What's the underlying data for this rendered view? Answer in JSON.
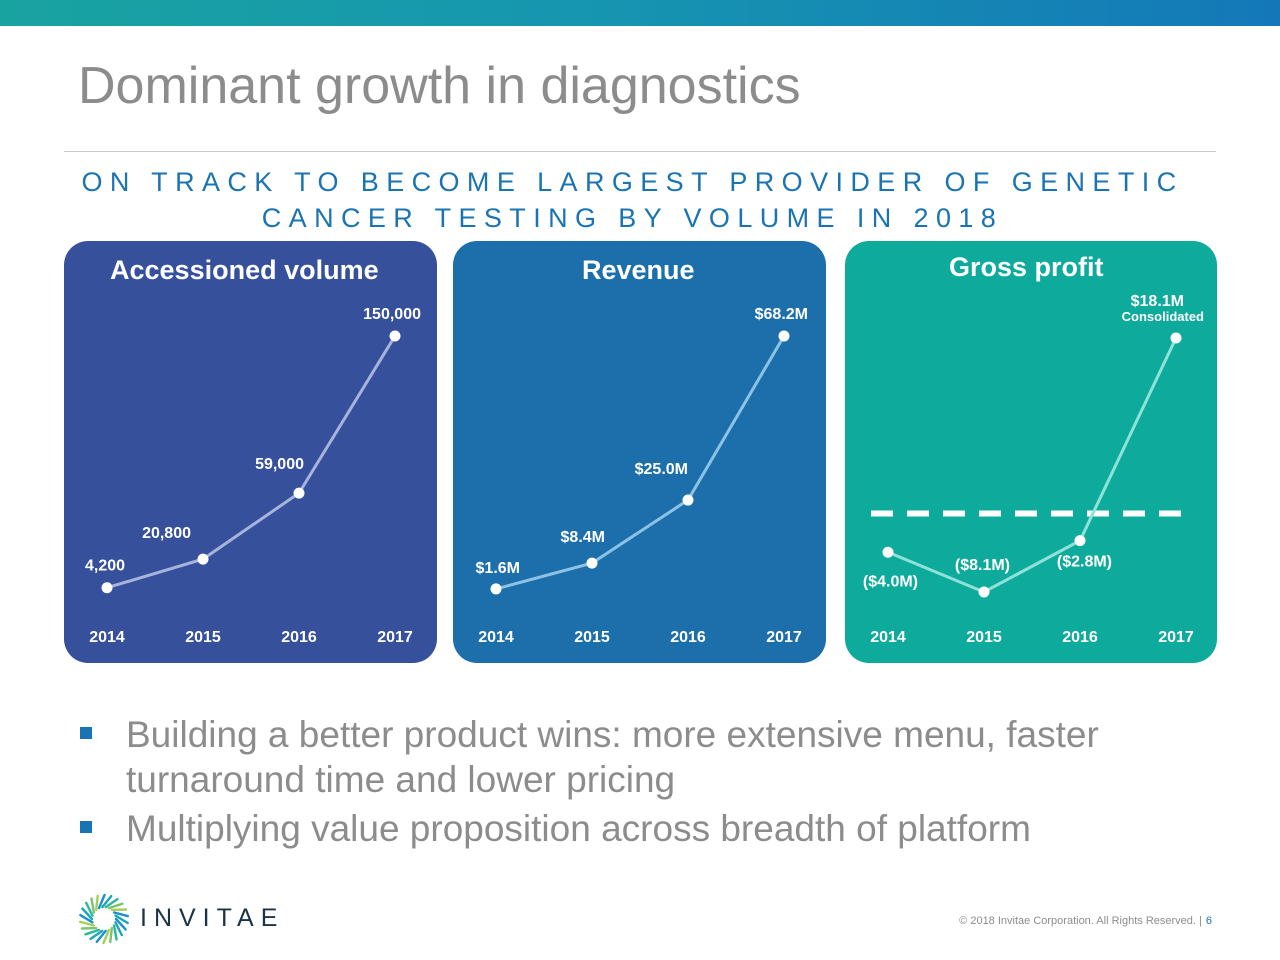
{
  "slide": {
    "title": "Dominant growth in diagnostics",
    "subtitle_line1": "ON TRACK TO BECOME LARGEST PROVIDER OF GENETIC",
    "subtitle_line2": "CANCER TESTING BY VOLUME IN 2018",
    "bullets": [
      "Building a better product wins: more extensive menu, faster turnaround time and lower pricing",
      "Multiplying value proposition across breadth of platform"
    ],
    "logo_text": "INVITAE",
    "footer": "© 2018 Invitae Corporation. All Rights Reserved. |",
    "page_number": "6"
  },
  "colors": {
    "title": "#8c8c8c",
    "subtitle": "#1a74b4",
    "panel_volume": "#36509c",
    "panel_revenue": "#1d6fab",
    "panel_profit": "#0eab9c",
    "line_volume": "#a6b4dc",
    "line_revenue": "#8cc2e6",
    "line_profit": "#8ee2d8"
  },
  "chart_data": [
    {
      "type": "line",
      "title": "Accessioned volume",
      "categories": [
        "2014",
        "2015",
        "2016",
        "2017"
      ],
      "values": [
        4200,
        20800,
        59000,
        150000
      ],
      "labels": [
        "4,200",
        "20,800",
        "59,000",
        "150,000"
      ],
      "ylim": [
        0,
        150000
      ]
    },
    {
      "type": "line",
      "title": "Revenue",
      "categories": [
        "2014",
        "2015",
        "2016",
        "2017"
      ],
      "values": [
        1.6,
        8.4,
        25.0,
        68.2
      ],
      "labels": [
        "$1.6M",
        "$8.4M",
        "$25.0M",
        "$68.2M"
      ],
      "ylim": [
        0,
        68.2
      ]
    },
    {
      "type": "line",
      "title": "Gross profit",
      "categories": [
        "2014",
        "2015",
        "2016",
        "2017"
      ],
      "values": [
        -4.0,
        -8.1,
        -2.8,
        18.1
      ],
      "labels": [
        "($4.0M)",
        "($8.1M)",
        "($2.8M)",
        "$18.1M"
      ],
      "annotation": "Consolidated",
      "zero_line": true,
      "ylim": [
        -8.1,
        18.1
      ]
    }
  ]
}
